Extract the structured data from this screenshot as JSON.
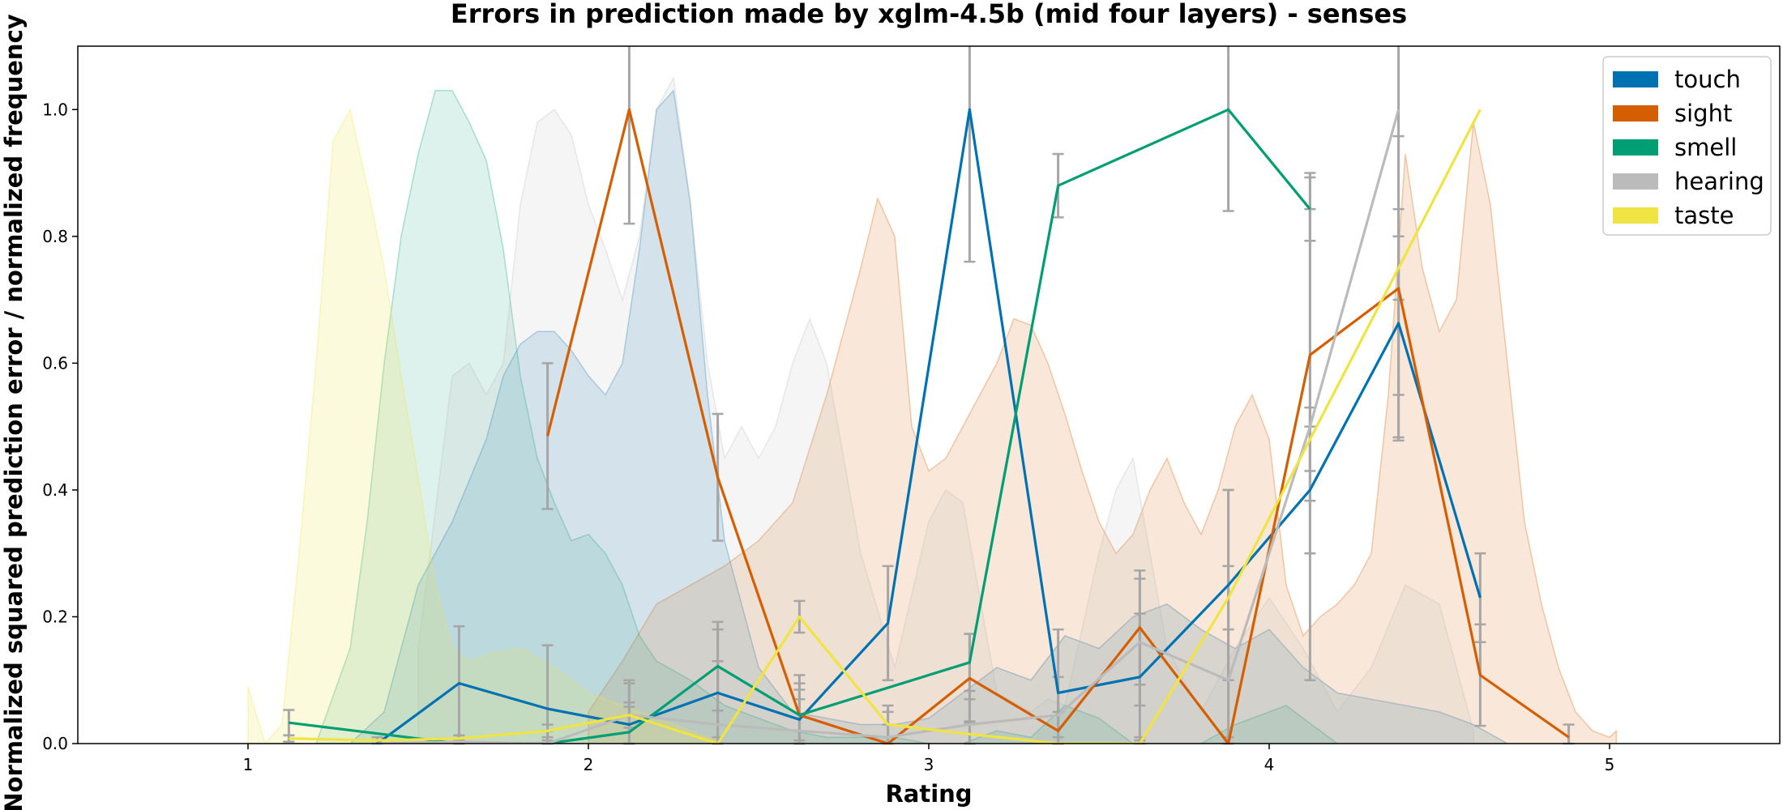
{
  "chart_data": {
    "type": "line",
    "title": "Errors in prediction made by xglm-4.5b (mid four layers) - senses",
    "xlabel": "Rating",
    "ylabel": "Normalized squared prediction error / normalized frequency",
    "xlim": [
      0.5,
      5.5
    ],
    "ylim": [
      0,
      1.1
    ],
    "xticks": [
      "1",
      "2",
      "3",
      "4",
      "5"
    ],
    "yticks": [
      "0.0",
      "0.2",
      "0.4",
      "0.6",
      "0.8",
      "1.0"
    ],
    "legend_position": "top-right",
    "grid": false,
    "series": [
      {
        "name": "touch",
        "color": "#0072B2",
        "x": [
          1.38,
          1.62,
          1.88,
          2.12,
          2.38,
          2.62,
          2.88,
          3.12,
          3.38,
          3.62,
          3.88,
          4.12,
          4.38,
          4.62
        ],
        "y": [
          0.0,
          0.095,
          0.055,
          0.03,
          0.08,
          0.038,
          0.19,
          1.0,
          0.08,
          0.105,
          0.25,
          0.4,
          0.663,
          0.23
        ],
        "err": [
          0,
          0.09,
          0.1,
          0.07,
          0.1,
          0.07,
          0.09,
          0.24,
          0.1,
          0.1,
          0.15,
          0.1,
          0.18,
          0.07
        ],
        "density_x": [
          1.2,
          1.3,
          1.4,
          1.5,
          1.6,
          1.7,
          1.75,
          1.8,
          1.85,
          1.9,
          1.95,
          2.0,
          2.05,
          2.1,
          2.15,
          2.2,
          2.25,
          2.3,
          2.35,
          2.4,
          2.5,
          2.6,
          2.7,
          2.8,
          2.9,
          3.0,
          3.1,
          3.2,
          3.3,
          3.4,
          3.5,
          3.6,
          3.7,
          3.8,
          3.9,
          4.0,
          4.1,
          4.2,
          4.3,
          4.4,
          4.5,
          4.6,
          4.7
        ],
        "density_y": [
          0.0,
          0.0,
          0.05,
          0.25,
          0.35,
          0.48,
          0.58,
          0.63,
          0.65,
          0.65,
          0.62,
          0.58,
          0.55,
          0.6,
          0.78,
          1.0,
          1.03,
          0.85,
          0.55,
          0.32,
          0.12,
          0.05,
          0.04,
          0.03,
          0.03,
          0.04,
          0.08,
          0.12,
          0.1,
          0.17,
          0.15,
          0.2,
          0.22,
          0.18,
          0.15,
          0.18,
          0.12,
          0.08,
          0.07,
          0.06,
          0.05,
          0.03,
          0.0
        ]
      },
      {
        "name": "sight",
        "color": "#D55E00",
        "x": [
          1.88,
          2.12,
          2.38,
          2.62,
          2.88,
          3.12,
          3.38,
          3.62,
          3.88,
          4.12,
          4.38,
          4.62,
          4.88
        ],
        "y": [
          0.485,
          1.0,
          0.42,
          0.045,
          0.0,
          0.103,
          0.02,
          0.183,
          0.0,
          0.613,
          0.718,
          0.108,
          0.01
        ],
        "err": [
          0.115,
          0.18,
          0.1,
          0.05,
          0.03,
          0.07,
          0.03,
          0.09,
          0.01,
          0.23,
          0.24,
          0.08,
          0.02
        ],
        "density_x": [
          2.0,
          2.1,
          2.2,
          2.3,
          2.4,
          2.5,
          2.6,
          2.7,
          2.8,
          2.85,
          2.9,
          2.95,
          3.0,
          3.05,
          3.1,
          3.15,
          3.2,
          3.25,
          3.3,
          3.35,
          3.4,
          3.45,
          3.5,
          3.55,
          3.6,
          3.65,
          3.7,
          3.75,
          3.8,
          3.85,
          3.9,
          3.95,
          4.0,
          4.05,
          4.1,
          4.15,
          4.2,
          4.25,
          4.3,
          4.35,
          4.4,
          4.45,
          4.5,
          4.55,
          4.6,
          4.65,
          4.7,
          4.75,
          4.8,
          4.85,
          4.9,
          4.95,
          5.0,
          5.02
        ],
        "density_y": [
          0.05,
          0.13,
          0.22,
          0.25,
          0.28,
          0.32,
          0.38,
          0.55,
          0.75,
          0.86,
          0.8,
          0.5,
          0.43,
          0.45,
          0.5,
          0.55,
          0.6,
          0.67,
          0.66,
          0.6,
          0.52,
          0.43,
          0.35,
          0.3,
          0.33,
          0.4,
          0.45,
          0.38,
          0.33,
          0.4,
          0.5,
          0.55,
          0.48,
          0.25,
          0.17,
          0.2,
          0.22,
          0.25,
          0.3,
          0.55,
          0.93,
          0.75,
          0.65,
          0.7,
          0.98,
          0.85,
          0.6,
          0.35,
          0.22,
          0.12,
          0.05,
          0.02,
          0.01,
          0.02
        ]
      },
      {
        "name": "smell",
        "color": "#009E73",
        "x": [
          1.12,
          1.62,
          1.88,
          2.12,
          2.38,
          2.62,
          3.12,
          3.38,
          3.88,
          4.12
        ],
        "y": [
          0.033,
          0.0,
          0.0,
          0.018,
          0.122,
          0.045,
          0.128,
          0.88,
          1.0,
          0.843
        ],
        "err": [
          0.02,
          0.005,
          0.005,
          0.04,
          0.07,
          0.04,
          0.045,
          0.05,
          0.16,
          0.05
        ],
        "density_x": [
          1.1,
          1.2,
          1.3,
          1.35,
          1.4,
          1.45,
          1.5,
          1.55,
          1.6,
          1.65,
          1.7,
          1.75,
          1.8,
          1.85,
          1.9,
          1.95,
          2.0,
          2.05,
          2.1,
          2.15,
          2.2,
          2.3,
          2.4,
          2.5,
          2.6,
          2.7,
          2.8,
          2.9,
          3.0,
          3.1,
          3.2,
          3.3,
          3.4,
          3.5,
          3.6,
          3.7,
          3.8,
          3.9,
          4.0,
          4.05,
          4.1,
          4.2
        ],
        "density_y": [
          0.0,
          0.0,
          0.15,
          0.35,
          0.6,
          0.8,
          0.93,
          1.03,
          1.03,
          0.98,
          0.92,
          0.78,
          0.58,
          0.45,
          0.38,
          0.32,
          0.33,
          0.3,
          0.25,
          0.17,
          0.13,
          0.1,
          0.06,
          0.04,
          0.02,
          0.01,
          0.01,
          0.01,
          0.0,
          0.0,
          0.02,
          0.01,
          0.06,
          0.04,
          0.0,
          0.0,
          0.0,
          0.03,
          0.05,
          0.06,
          0.04,
          0.0
        ]
      },
      {
        "name": "hearing",
        "color": "#BBBBBB",
        "x": [
          1.38,
          1.62,
          1.88,
          2.12,
          2.38,
          2.62,
          2.88,
          3.12,
          3.38,
          3.62,
          3.88,
          4.12,
          4.38
        ],
        "y": [
          0.0,
          0.003,
          0.0,
          0.045,
          0.03,
          0.02,
          0.01,
          0.03,
          0.045,
          0.16,
          0.1,
          0.5,
          1.0
        ],
        "err": [
          0,
          0.01,
          0.02,
          0.05,
          0.1,
          0.05,
          0.05,
          0.04,
          0.06,
          0.1,
          0.3,
          0.4,
          0.45
        ],
        "density_x": [
          1.5,
          1.6,
          1.65,
          1.7,
          1.75,
          1.8,
          1.85,
          1.9,
          1.95,
          2.0,
          2.05,
          2.1,
          2.15,
          2.2,
          2.25,
          2.3,
          2.35,
          2.4,
          2.45,
          2.5,
          2.55,
          2.6,
          2.65,
          2.7,
          2.75,
          2.8,
          2.9,
          3.0,
          3.05,
          3.1,
          3.2,
          3.3,
          3.35,
          3.4,
          3.5,
          3.55,
          3.6,
          3.7,
          3.8,
          3.9,
          4.0,
          4.1,
          4.2,
          4.3,
          4.4,
          4.5,
          4.6
        ],
        "density_y": [
          0.15,
          0.58,
          0.6,
          0.55,
          0.6,
          0.85,
          0.98,
          1.0,
          0.96,
          0.85,
          0.78,
          0.7,
          0.8,
          1.0,
          1.05,
          0.85,
          0.6,
          0.45,
          0.5,
          0.45,
          0.5,
          0.6,
          0.67,
          0.6,
          0.45,
          0.3,
          0.12,
          0.35,
          0.4,
          0.38,
          0.08,
          0.05,
          0.07,
          0.06,
          0.3,
          0.4,
          0.45,
          0.15,
          0.05,
          0.15,
          0.23,
          0.15,
          0.05,
          0.12,
          0.25,
          0.22,
          0.02
        ]
      },
      {
        "name": "taste",
        "color": "#F0E442",
        "x": [
          1.12,
          1.38,
          1.62,
          1.88,
          2.12,
          2.38,
          2.62,
          2.88,
          3.12,
          3.38,
          3.62,
          3.88,
          4.12,
          4.38,
          4.62
        ],
        "y": [
          0.008,
          0.005,
          0.008,
          0.02,
          0.045,
          0.0,
          0.2,
          0.03,
          0.015,
          0.0,
          0.0,
          0.23,
          0.48,
          0.75,
          1.0
        ],
        "err": [
          0.005,
          0.005,
          0.005,
          0.01,
          0.02,
          0.01,
          0.025,
          0.02,
          0.02,
          0.01,
          0.01,
          0.05,
          0.05,
          0.05,
          0.0
        ],
        "density_x": [
          1.0,
          1.05,
          1.1,
          1.15,
          1.2,
          1.25,
          1.3,
          1.35,
          1.4,
          1.45,
          1.5,
          1.55,
          1.6,
          1.65,
          1.7,
          1.8,
          1.9,
          2.0,
          2.1,
          2.2,
          2.3,
          2.4
        ],
        "density_y": [
          0.09,
          0.0,
          0.03,
          0.3,
          0.6,
          0.95,
          1.0,
          0.88,
          0.75,
          0.58,
          0.42,
          0.25,
          0.15,
          0.13,
          0.14,
          0.15,
          0.12,
          0.08,
          0.06,
          0.04,
          0.02,
          0.0
        ]
      }
    ]
  }
}
